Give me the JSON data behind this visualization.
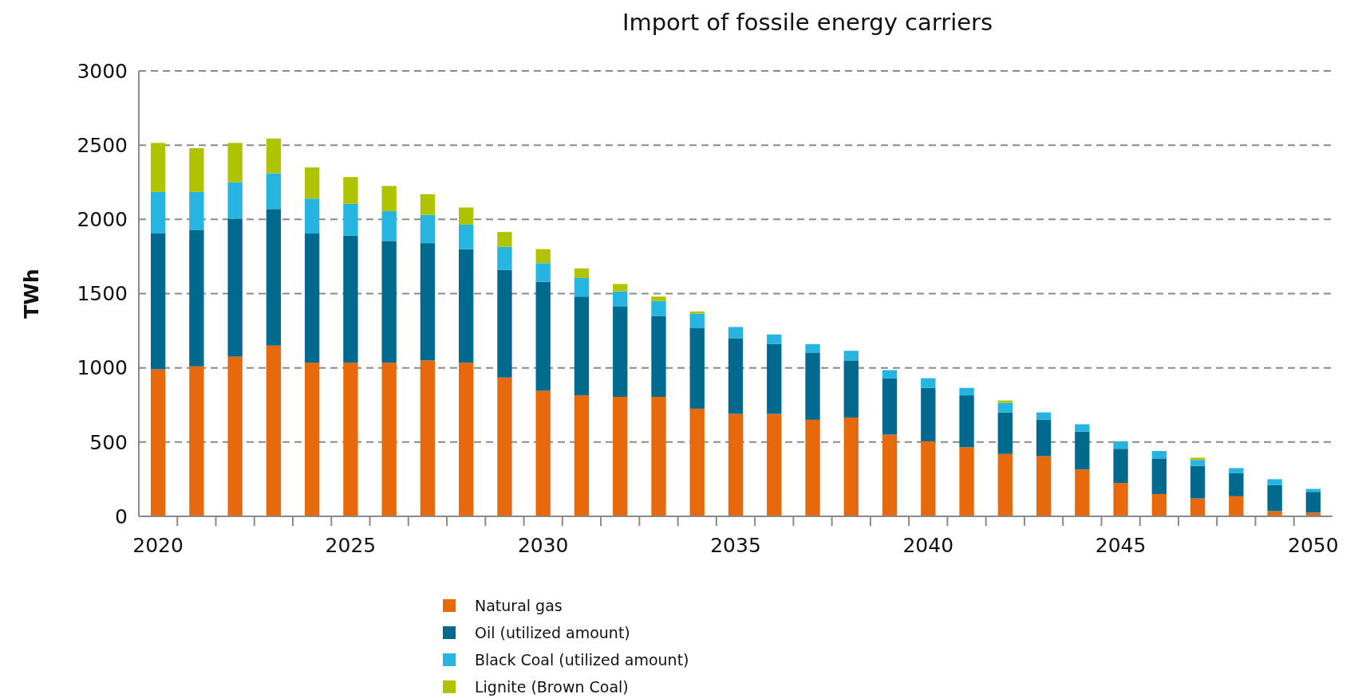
{
  "chart_data": {
    "type": "bar",
    "stacked": true,
    "title": "Import of fossile energy carriers",
    "ylabel": "TWh",
    "x": [
      2020,
      2021,
      2022,
      2023,
      2024,
      2025,
      2026,
      2027,
      2028,
      2029,
      2030,
      2031,
      2032,
      2033,
      2034,
      2035,
      2036,
      2037,
      2038,
      2039,
      2040,
      2041,
      2042,
      2043,
      2044,
      2045,
      2046,
      2047,
      2048,
      2049,
      2050
    ],
    "xlim": [
      2019.5,
      2050.5
    ],
    "xticks": [
      2020,
      {
        "value": 2020.5,
        "label": null
      },
      {
        "value": 2021.5,
        "label": null
      },
      {
        "value": 2022.5,
        "label": null
      },
      {
        "value": 2023.5,
        "label": null
      },
      {
        "value": 2024.5,
        "label": null
      },
      2025,
      {
        "value": 2025.5,
        "label": null
      },
      {
        "value": 2026.5,
        "label": null
      },
      {
        "value": 2027.5,
        "label": null
      },
      {
        "value": 2028.5,
        "label": null
      },
      {
        "value": 2029.5,
        "label": null
      },
      2030,
      {
        "value": 2030.5,
        "label": null
      },
      {
        "value": 2031.5,
        "label": null
      },
      {
        "value": 2032.5,
        "label": null
      },
      {
        "value": 2033.5,
        "label": null
      },
      {
        "value": 2034.5,
        "label": null
      },
      2035,
      {
        "value": 2035.5,
        "label": null
      },
      {
        "value": 2036.5,
        "label": null
      },
      {
        "value": 2037.5,
        "label": null
      },
      {
        "value": 2038.5,
        "label": null
      },
      {
        "value": 2039.5,
        "label": null
      },
      2040,
      {
        "value": 2040.5,
        "label": null
      },
      {
        "value": 2041.5,
        "label": null
      },
      {
        "value": 2042.5,
        "label": null
      },
      {
        "value": 2043.5,
        "label": null
      },
      {
        "value": 2044.5,
        "label": null
      },
      2045,
      {
        "value": 2045.5,
        "label": null
      },
      {
        "value": 2046.5,
        "label": null
      },
      {
        "value": 2047.5,
        "label": null
      },
      {
        "value": 2048.5,
        "label": null
      },
      {
        "value": 2049.5,
        "label": null
      },
      2050
    ],
    "ylim": [
      0,
      3000
    ],
    "yticks": [
      0,
      500,
      1000,
      1500,
      2000,
      2500,
      3000
    ],
    "grid": "y",
    "legend": "bottom",
    "series": [
      {
        "name": "Natural gas",
        "color": "#e8690b",
        "values": [
          990,
          1010,
          1075,
          1150,
          1035,
          1035,
          1035,
          1050,
          1035,
          935,
          845,
          815,
          805,
          805,
          725,
          690,
          690,
          650,
          665,
          550,
          505,
          465,
          420,
          405,
          315,
          225,
          150,
          120,
          135,
          35,
          25
        ]
      },
      {
        "name": "Oil (utilized amount)",
        "color": "#006a8e",
        "values": [
          915,
          920,
          930,
          920,
          870,
          855,
          820,
          790,
          765,
          725,
          735,
          665,
          610,
          545,
          545,
          510,
          470,
          450,
          385,
          380,
          360,
          350,
          280,
          245,
          255,
          230,
          240,
          220,
          155,
          175,
          140
        ]
      },
      {
        "name": "Black Coal (utilized amount)",
        "color": "#25b5e0",
        "values": [
          280,
          255,
          245,
          240,
          235,
          215,
          200,
          190,
          165,
          155,
          125,
          125,
          100,
          100,
          95,
          75,
          65,
          60,
          65,
          55,
          65,
          50,
          65,
          50,
          50,
          50,
          50,
          40,
          35,
          40,
          20
        ]
      },
      {
        "name": "Lignite (Brown Coal)",
        "color": "#afc300",
        "values": [
          330,
          295,
          265,
          235,
          210,
          180,
          170,
          140,
          115,
          100,
          95,
          65,
          50,
          30,
          15,
          null,
          null,
          null,
          null,
          null,
          null,
          null,
          15,
          null,
          null,
          null,
          null,
          15,
          null,
          null,
          null
        ]
      }
    ]
  }
}
